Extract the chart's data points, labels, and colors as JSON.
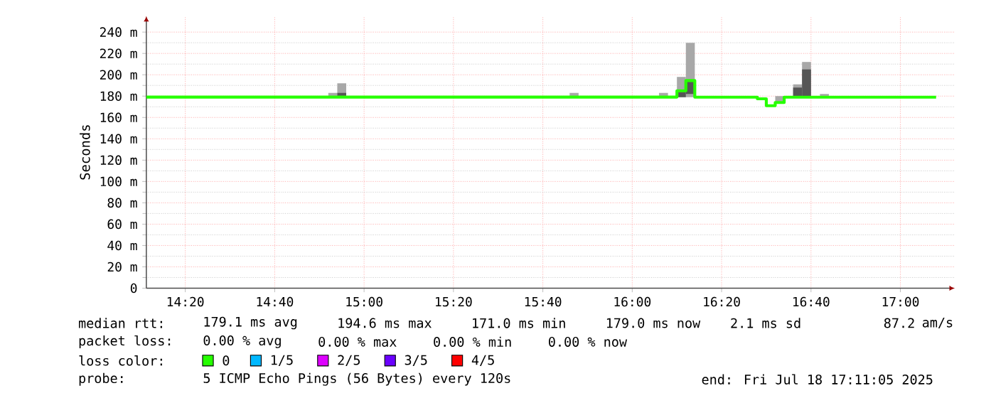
{
  "chart_data": {
    "type": "step",
    "ylabel": "Seconds",
    "xlim": [
      14.188,
      17.203
    ],
    "ylim": [
      0,
      255
    ],
    "xticks": [
      {
        "value": 14.3333,
        "label": "14:20"
      },
      {
        "value": 14.6667,
        "label": "14:40"
      },
      {
        "value": 15,
        "label": "15:00"
      },
      {
        "value": 15.3333,
        "label": "15:20"
      },
      {
        "value": 15.6667,
        "label": "15:40"
      },
      {
        "value": 16,
        "label": "16:00"
      },
      {
        "value": 16.3333,
        "label": "16:20"
      },
      {
        "value": 16.6667,
        "label": "16:40"
      },
      {
        "value": 17,
        "label": "17:00"
      }
    ],
    "yticks": [
      0,
      {
        "value": 20,
        "label": "20 m"
      },
      {
        "value": 40,
        "label": "40 m"
      },
      {
        "value": 60,
        "label": "60 m"
      },
      {
        "value": 80,
        "label": "80 m"
      },
      {
        "value": 100,
        "label": "100 m"
      },
      {
        "value": 120,
        "label": "120 m"
      },
      {
        "value": 140,
        "label": "140 m"
      },
      {
        "value": 160,
        "label": "160 m"
      },
      {
        "value": 180,
        "label": "180 m"
      },
      {
        "value": 200,
        "label": "200 m"
      },
      {
        "value": 220,
        "label": "220 m"
      },
      {
        "value": 240,
        "label": "240 m"
      }
    ],
    "grid": true,
    "legend": "bottom",
    "legend_title": "loss color:",
    "series": [
      {
        "type": "bar",
        "color": "#a8a8a8",
        "x": [
          14.8833,
          14.9167,
          15.7833,
          16.1167,
          16.1833,
          16.2167,
          16.55,
          16.6167,
          16.65,
          16.7167
        ],
        "base": [
          179,
          179,
          179,
          179,
          179,
          179,
          174,
          179,
          179,
          179
        ],
        "values": [
          4,
          13,
          4,
          4,
          19,
          51,
          6,
          12,
          33,
          3
        ]
      },
      {
        "type": "bar",
        "color": "#555555",
        "x": [
          14.9167,
          16.1833,
          16.2167,
          16.6167,
          16.65
        ],
        "base": [
          179,
          179,
          182,
          179,
          179
        ],
        "values": [
          4,
          5,
          13,
          9,
          26
        ]
      },
      {
        "name": "0",
        "color": "#26ff00",
        "x": [
          14.188,
          16.1667,
          16.2,
          16.2333,
          16.4667,
          16.5,
          16.5333,
          16.5667,
          17.1333
        ],
        "values": [
          179.1,
          185,
          194.6,
          179,
          177.5,
          171,
          174,
          179,
          179
        ]
      },
      {
        "name": "1/5",
        "color": "#00b8ff"
      },
      {
        "name": "2/5",
        "color": "#dd00ff"
      },
      {
        "name": "3/5",
        "color": "#6a00ff"
      },
      {
        "name": "4/5",
        "color": "#ff0000"
      }
    ],
    "annotations": [
      "median rtt:",
      "179.1 ms avg",
      "194.6 ms max",
      "171.0 ms min",
      "179.0 ms now",
      "2.1 ms sd",
      "87.2",
      "am/s",
      "packet loss:",
      "0.00 % avg",
      "0.00 % max",
      "0.00 % min",
      "0.00 % now",
      "probe:",
      "5 ICMP Echo Pings (56 Bytes) every 120s",
      "end: Fri Jul 18 17:11:05 2025"
    ]
  }
}
